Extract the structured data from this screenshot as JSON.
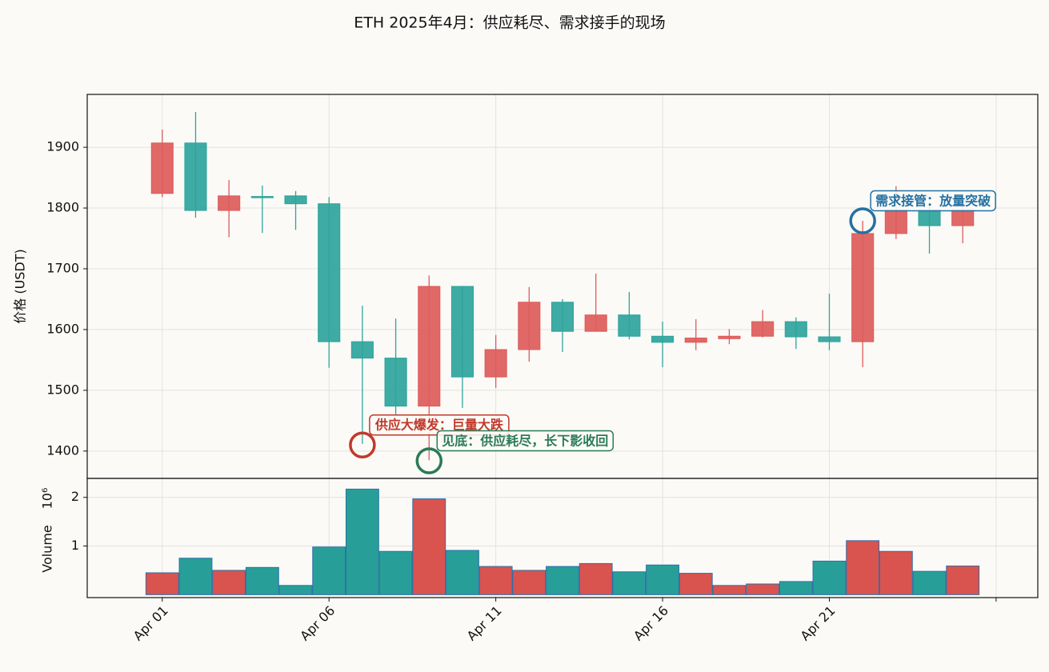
{
  "chart_data": [
    {
      "type": "candlestick",
      "title": "ETH 2025年4月：供应耗尽、需求接手的现场",
      "ylabel": "价格 (USDT)",
      "x": [
        "2025-04-01",
        "2025-04-02",
        "2025-04-03",
        "2025-04-04",
        "2025-04-05",
        "2025-04-06",
        "2025-04-07",
        "2025-04-08",
        "2025-04-09",
        "2025-04-10",
        "2025-04-11",
        "2025-04-12",
        "2025-04-13",
        "2025-04-14",
        "2025-04-15",
        "2025-04-16",
        "2025-04-17",
        "2025-04-18",
        "2025-04-19",
        "2025-04-20",
        "2025-04-21",
        "2025-04-22",
        "2025-04-23",
        "2025-04-24",
        "2025-04-25"
      ],
      "open": [
        1824,
        1907,
        1796,
        1819,
        1820,
        1807,
        1580,
        1553,
        1474,
        1671,
        1522,
        1567,
        1645,
        1597,
        1624,
        1589,
        1579,
        1585,
        1589,
        1613,
        1588,
        1580,
        1758,
        1797,
        1771
      ],
      "high": [
        1929,
        1958,
        1846,
        1837,
        1828,
        1818,
        1639,
        1618,
        1689,
        1671,
        1591,
        1670,
        1650,
        1692,
        1662,
        1613,
        1617,
        1601,
        1632,
        1620,
        1659,
        1779,
        1836,
        1808,
        1814
      ],
      "low": [
        1818,
        1784,
        1752,
        1759,
        1764,
        1537,
        1412,
        1458,
        1385,
        1471,
        1504,
        1547,
        1563,
        1597,
        1584,
        1538,
        1566,
        1576,
        1587,
        1568,
        1566,
        1538,
        1749,
        1725,
        1742
      ],
      "close": [
        1907,
        1796,
        1820,
        1817,
        1807,
        1580,
        1553,
        1474,
        1671,
        1522,
        1567,
        1645,
        1597,
        1624,
        1589,
        1579,
        1586,
        1589,
        1613,
        1588,
        1580,
        1758,
        1797,
        1771,
        1797
      ],
      "up_color": "#dd5c5a",
      "down_color": "#2ea49c",
      "ylim": [
        1355,
        1987
      ],
      "yticks": [
        1400,
        1500,
        1600,
        1700,
        1800,
        1900
      ],
      "grid": true,
      "annotations": [
        {
          "text": "供应大爆发：巨量大跌",
          "x": "2025-04-07",
          "y": 1410,
          "color": "#c0392b"
        },
        {
          "text": "见底：供应耗尽，长下影收回",
          "x": "2025-04-09",
          "y": 1384,
          "color": "#2a7a55"
        },
        {
          "text": "需求接管：放量突破",
          "x": "2025-04-22",
          "y": 1779,
          "color": "#2471a3"
        }
      ]
    },
    {
      "type": "bar",
      "ylabel": "Volume",
      "offset_text": "10⁶",
      "values": [
        0.45,
        0.75,
        0.5,
        0.56,
        0.19,
        0.98,
        2.17,
        0.89,
        1.97,
        0.91,
        0.58,
        0.5,
        0.58,
        0.64,
        0.47,
        0.61,
        0.44,
        0.19,
        0.22,
        0.27,
        0.69,
        1.11,
        0.89,
        0.48,
        0.59
      ],
      "colors": [
        "#d9534f",
        "#279f98",
        "#d9534f",
        "#279f98",
        "#279f98",
        "#279f98",
        "#279f98",
        "#279f98",
        "#d9534f",
        "#279f98",
        "#d9534f",
        "#d9534f",
        "#279f98",
        "#d9534f",
        "#279f98",
        "#279f98",
        "#d9534f",
        "#d9534f",
        "#d9534f",
        "#279f98",
        "#279f98",
        "#d9534f",
        "#d9534f",
        "#279f98",
        "#d9534f"
      ],
      "ylim": [
        -0.06,
        2.39
      ],
      "yticks": [
        1,
        2
      ],
      "grid": true,
      "xlim": [
        "2025-03-29T18",
        "2025-04-27T06"
      ],
      "xticks": [
        {
          "value": "2025-04-01",
          "label": "Apr 01"
        },
        {
          "value": "2025-04-06",
          "label": "Apr 06"
        },
        {
          "value": "2025-04-11",
          "label": "Apr 11"
        },
        {
          "value": "2025-04-16",
          "label": "Apr 16"
        },
        {
          "value": "2025-04-21",
          "label": "Apr 21"
        },
        {
          "value": "2025-04-26",
          "label": null
        }
      ]
    }
  ]
}
